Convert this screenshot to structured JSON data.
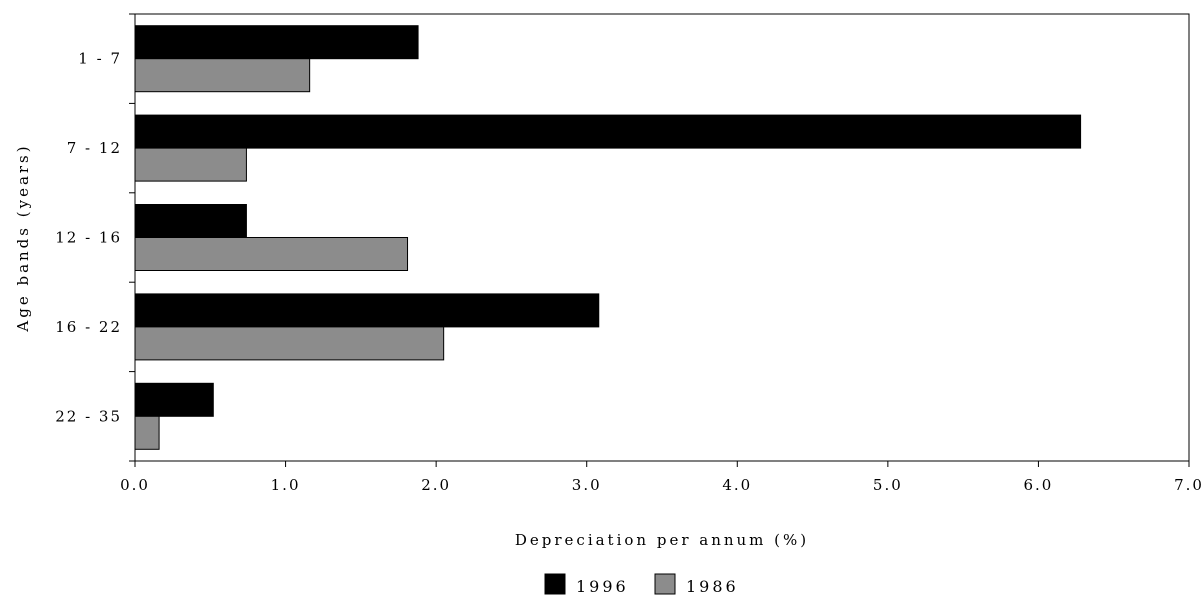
{
  "chart_data": {
    "type": "bar",
    "orientation": "horizontal",
    "categories": [
      "1 - 7",
      "7 - 12",
      "12 - 16",
      "16 - 22",
      "22 - 35"
    ],
    "series": [
      {
        "name": "1996",
        "color": "#000000",
        "values": [
          1.88,
          6.28,
          0.74,
          3.08,
          0.52
        ]
      },
      {
        "name": "1986",
        "color": "#8c8c8c",
        "values": [
          1.16,
          0.74,
          1.81,
          2.05,
          0.16
        ]
      }
    ],
    "xlabel": "Depreciation per annum (%)",
    "ylabel": "Age bands (years)",
    "xlim": [
      0,
      7
    ],
    "xticks": [
      "0.0",
      "1.0",
      "2.0",
      "3.0",
      "4.0",
      "5.0",
      "6.0",
      "7.0"
    ],
    "grid": false,
    "legend_position": "bottom"
  }
}
